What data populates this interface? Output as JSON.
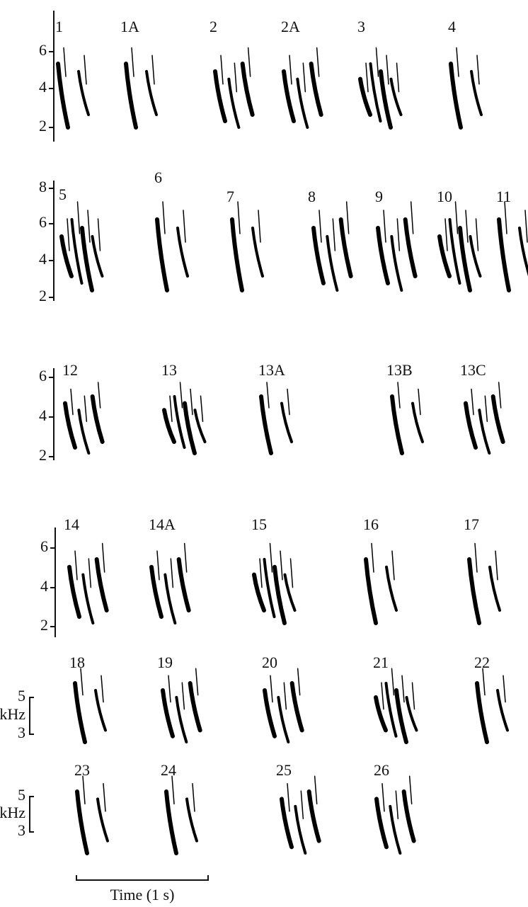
{
  "rows": [
    {
      "yticks": [
        "6",
        "4",
        "2"
      ],
      "labels": [
        "1",
        "1A",
        "2",
        "2A",
        "3",
        "4"
      ]
    },
    {
      "yticks": [
        "8",
        "6",
        "4",
        "2"
      ],
      "labels": [
        "5",
        "6",
        "7",
        "8",
        "9",
        "10",
        "11"
      ]
    },
    {
      "yticks": [
        "6",
        "4",
        "2"
      ],
      "labels": [
        "12",
        "13",
        "13A",
        "13B",
        "13C"
      ]
    },
    {
      "yticks": [
        "6",
        "4",
        "2"
      ],
      "labels": [
        "14",
        "14A",
        "15",
        "16",
        "17"
      ]
    },
    {
      "yticks": [
        "5",
        "kHz",
        "3"
      ],
      "labels": [
        "18",
        "19",
        "20",
        "21",
        "22"
      ]
    },
    {
      "yticks": [
        "5",
        "kHz",
        "3"
      ],
      "labels": [
        "23",
        "24",
        "25",
        "26"
      ]
    }
  ],
  "time_scale": "Time (1 s)"
}
